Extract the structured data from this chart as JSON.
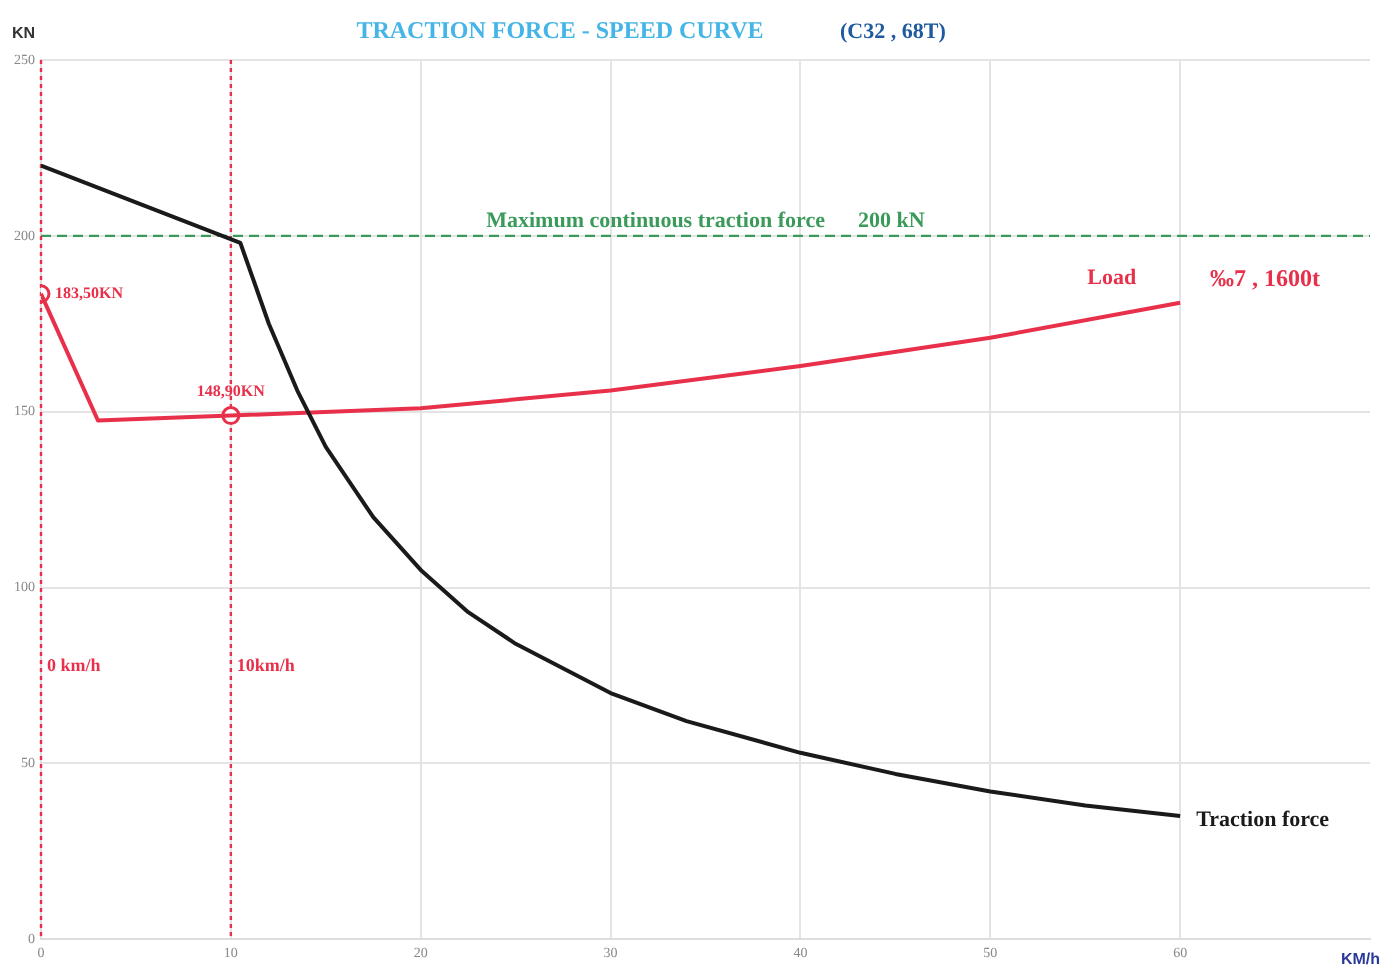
{
  "chart_data": {
    "type": "line",
    "title": "TRACTION FORCE - SPEED CURVE",
    "subtitle": "(C32 , 68T)",
    "xlabel": "KM/h",
    "ylabel": "KN",
    "xlim": [
      0,
      70
    ],
    "xticks": [
      0,
      10,
      20,
      30,
      40,
      50,
      60
    ],
    "ylim": [
      0,
      250
    ],
    "yticks": [
      0,
      50,
      100,
      150,
      200,
      250
    ],
    "grid": true,
    "legend": false,
    "line_style": "solid",
    "series": [
      {
        "name": "Traction force",
        "color": "#1a1a1a",
        "marker": "none",
        "x": [
          0,
          10.5,
          12,
          13.5,
          15,
          17.5,
          20,
          22.5,
          25,
          30,
          34,
          40,
          45,
          50,
          55,
          60
        ],
        "values": [
          220,
          198,
          175,
          156,
          140,
          120,
          105,
          93,
          84,
          70,
          62,
          53,
          47,
          42,
          38,
          35
        ]
      },
      {
        "name": "Load",
        "color": "#e8304a",
        "marker": "none",
        "x": [
          0,
          3,
          10,
          20,
          30,
          40,
          50,
          60
        ],
        "values": [
          183.5,
          147.5,
          148.9,
          151,
          156,
          163,
          171,
          181
        ]
      },
      {
        "type": "scatter",
        "color": "#e8304a",
        "marker": "circle",
        "x": [
          0,
          10
        ],
        "values": [
          183.5,
          148.9
        ],
        "value_labels": [
          "183,50KN",
          "148,90KN"
        ]
      }
    ],
    "ref_lines": [
      {
        "axis": "y",
        "value": 200,
        "label": "Maximum continuous traction force      200 kN",
        "color": "#3a9a5a",
        "line_style": "dashed"
      },
      {
        "axis": "x",
        "value": 0,
        "label": "0 km/h",
        "color": "#e8304a",
        "line_style": "dotted"
      },
      {
        "axis": "x",
        "value": 10,
        "label": "10km/h",
        "color": "#e8304a",
        "line_style": "dotted"
      }
    ],
    "annotations": [
      "‰7 , 1600t"
    ]
  }
}
